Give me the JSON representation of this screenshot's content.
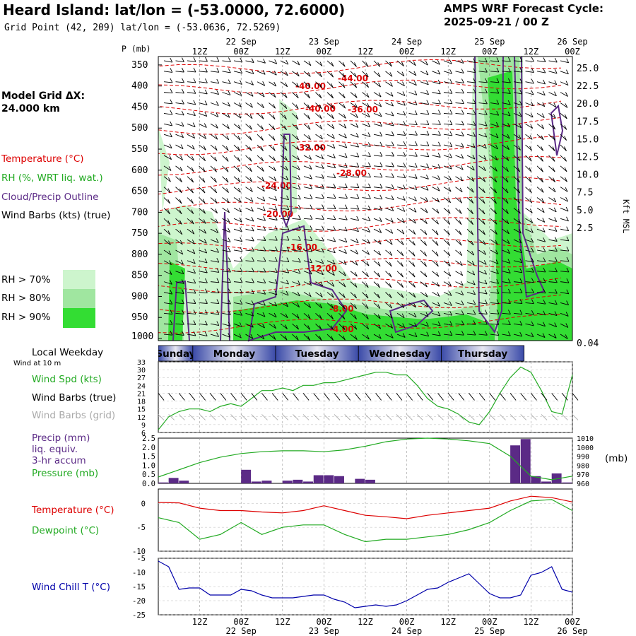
{
  "header": {
    "title": "Heard Island:  lat/lon = (-53.0000, 72.6000)",
    "subtitle": "Grid Point (42, 209) lat/lon = (-53.0636, 72.5269)",
    "cycle_line1": "AMPS WRF Forecast Cycle:",
    "cycle_line2": "2025-09-21 / 00  Z",
    "model_grid_line1": "Model Grid ΔX:",
    "model_grid_line2": " 24.000 km"
  },
  "colors": {
    "temperature": "#dd0000",
    "rh": "#22aa22",
    "cloud": "#5b2a86",
    "wind_chill": "#0000aa",
    "rh70": "#cdf5cd",
    "rh80": "#a0e6a0",
    "rh90": "#33dd33",
    "weekday_band": "#3a4aa8"
  },
  "legend": {
    "temperature": "Temperature (°C)",
    "rh": "RH (%, WRT liq. wat.)",
    "cloud": "Cloud/Precip Outline",
    "wind": "Wind Barbs (kts) (true)",
    "rh70": "RH > 70%",
    "rh80": "RH > 80%",
    "rh90": "RH > 90%"
  },
  "time_axis": {
    "top_hour_labels": [
      "12Z",
      "00Z",
      "12Z",
      "00Z",
      "12Z",
      "00Z",
      "12Z",
      "00Z",
      "12Z",
      "00Z"
    ],
    "top_date_labels": [
      "22 Sep",
      "23 Sep",
      "24 Sep",
      "25 Sep",
      "26 Sep"
    ],
    "bottom_hour_labels": [
      "12Z",
      "00Z",
      "12Z",
      "00Z",
      "12Z",
      "00Z",
      "12Z",
      "00Z",
      "12Z",
      "00Z"
    ],
    "bottom_date_labels": [
      "22 Sep",
      "23 Sep",
      "24 Sep",
      "25 Sep",
      "26 Sep"
    ],
    "weekday_title": "Local Weekday",
    "weekdays": [
      "Sunday",
      "Monday",
      "Tuesday",
      "Wednesday",
      "Thursday"
    ]
  },
  "chart_data": [
    {
      "type": "heatmap",
      "name": "profile",
      "ylabel": "P (mb)",
      "y2label": "Kft MSL",
      "p_ticks": [
        350,
        400,
        450,
        500,
        550,
        600,
        650,
        700,
        750,
        800,
        850,
        900,
        950,
        1000
      ],
      "kft_ticks": [
        "25.0",
        "22.5",
        "20.0",
        "17.5",
        "15.0",
        "12.5",
        "10.0",
        "7.5",
        "5.0",
        "2.5",
        "0.04"
      ],
      "temperature_labels": [
        "-44.00",
        "-40.00",
        "-40.00",
        "-36.00",
        "-32.00",
        "-28.00",
        "-24.00",
        "-20.00",
        "-16.00",
        "-12.00",
        "-8.00",
        "-4.00"
      ]
    },
    {
      "type": "line",
      "name": "wind_speed",
      "title_lines": [
        "Wind Spd (kts)",
        "Wind Barbs (true)",
        "Wind Barbs (grid)"
      ],
      "subtitle": "Wind at 10 m",
      "y_ticks": [
        33,
        30,
        27,
        24,
        21,
        18,
        15,
        12,
        9,
        6
      ],
      "ylim": [
        6,
        33
      ],
      "x_hours": [
        0,
        3,
        6,
        9,
        12,
        15,
        18,
        21,
        24,
        27,
        30,
        33,
        36,
        39,
        42,
        45,
        48,
        51,
        54,
        57,
        60,
        63,
        66,
        69,
        72,
        75,
        78,
        81,
        84,
        87,
        90,
        93,
        96,
        99,
        102,
        105,
        108,
        111,
        114,
        117,
        120
      ],
      "values": [
        7,
        12,
        14,
        15,
        15,
        14,
        16,
        17,
        16,
        19,
        22,
        22,
        23,
        22,
        24,
        24,
        25,
        25,
        26,
        27,
        28,
        29,
        29,
        28,
        28,
        24,
        19,
        16,
        15,
        13,
        10,
        9,
        14,
        21,
        27,
        31,
        29,
        22,
        14,
        13,
        28
      ]
    },
    {
      "type": "bar",
      "name": "precip_pressure",
      "title_lines": [
        "Precip (mm)",
        "liq. equiv.",
        "3-hr accum",
        "Pressure (mb)"
      ],
      "y_ticks": [
        "2.5",
        "2.0",
        "1.5",
        "1.0",
        "0.5",
        "0.0"
      ],
      "y2_ticks": [
        1010,
        1000,
        990,
        980,
        970,
        960
      ],
      "y2label": "(mb)",
      "precip_hours": [
        0,
        3,
        6,
        9,
        12,
        15,
        18,
        21,
        24,
        27,
        30,
        33,
        36,
        39,
        42,
        45,
        48,
        51,
        54,
        57,
        60,
        63,
        66,
        69,
        72,
        75,
        78,
        81,
        84,
        87,
        90,
        93,
        96,
        99,
        102,
        105,
        108,
        111,
        114,
        117
      ],
      "precip": [
        0.05,
        0.3,
        0.15,
        0,
        0,
        0,
        0,
        0,
        0.75,
        0.1,
        0.15,
        0,
        0.15,
        0.2,
        0.1,
        0.45,
        0.45,
        0.4,
        0,
        0.25,
        0.2,
        0,
        0,
        0,
        0,
        0,
        0,
        0,
        0,
        0,
        0,
        0,
        0,
        0,
        2.1,
        2.45,
        0.4,
        0.1,
        0.55,
        0.05
      ],
      "pressure_hours": [
        0,
        6,
        12,
        18,
        24,
        30,
        36,
        42,
        48,
        54,
        60,
        66,
        72,
        78,
        84,
        90,
        96,
        102,
        108,
        114,
        120
      ],
      "pressure": [
        967,
        975,
        983,
        989,
        993,
        995,
        996,
        996,
        995,
        997,
        1001,
        1006,
        1009,
        1010,
        1009,
        1007,
        1004,
        990,
        968,
        964,
        968
      ]
    },
    {
      "type": "line",
      "name": "temp_dewpoint",
      "series_names": [
        "Temperature (°C)",
        "Dewpoint (°C)"
      ],
      "y_ticks": [
        0,
        -5,
        -10
      ],
      "ylim": [
        -10,
        3
      ],
      "x_hours": [
        0,
        6,
        12,
        18,
        24,
        30,
        36,
        42,
        48,
        54,
        60,
        66,
        72,
        78,
        84,
        90,
        96,
        102,
        108,
        114,
        120
      ],
      "temperature": [
        0.2,
        0.1,
        -1.0,
        -1.5,
        -1.5,
        -1.8,
        -2.0,
        -1.5,
        -0.5,
        -1.5,
        -2.5,
        -2.8,
        -3.2,
        -2.5,
        -2.0,
        -1.5,
        -1.0,
        0.5,
        1.5,
        1.2,
        0.3
      ],
      "dewpoint": [
        -3,
        -4,
        -7.5,
        -6.5,
        -4,
        -6.5,
        -5,
        -4.5,
        -4.5,
        -6.5,
        -8,
        -7.5,
        -7.5,
        -7,
        -6.5,
        -5.5,
        -4,
        -1.5,
        0.5,
        0.8,
        -1.5
      ]
    },
    {
      "type": "line",
      "name": "wind_chill",
      "series_names": [
        "Wind Chill T (°C)"
      ],
      "y_ticks": [
        -5,
        -10,
        -15,
        -20,
        -25
      ],
      "ylim": [
        -25,
        -5
      ],
      "x_hours": [
        0,
        3,
        6,
        9,
        12,
        15,
        18,
        21,
        24,
        27,
        30,
        33,
        36,
        39,
        42,
        45,
        48,
        51,
        54,
        57,
        60,
        63,
        66,
        69,
        72,
        75,
        78,
        81,
        84,
        87,
        90,
        93,
        96,
        99,
        102,
        105,
        108,
        111,
        114,
        117,
        120
      ],
      "values": [
        -6,
        -8,
        -16,
        -15.5,
        -15.5,
        -18,
        -18,
        -18,
        -16,
        -16.5,
        -18,
        -19,
        -19,
        -19,
        -18.5,
        -18,
        -18,
        -19.5,
        -20.5,
        -22.5,
        -22,
        -21.5,
        -22,
        -21.5,
        -20,
        -18,
        -16,
        -15.5,
        -13.5,
        -12,
        -10.5,
        -14,
        -17.5,
        -19,
        -19,
        -18,
        -11,
        -10,
        -8,
        -16,
        -17
      ]
    }
  ]
}
